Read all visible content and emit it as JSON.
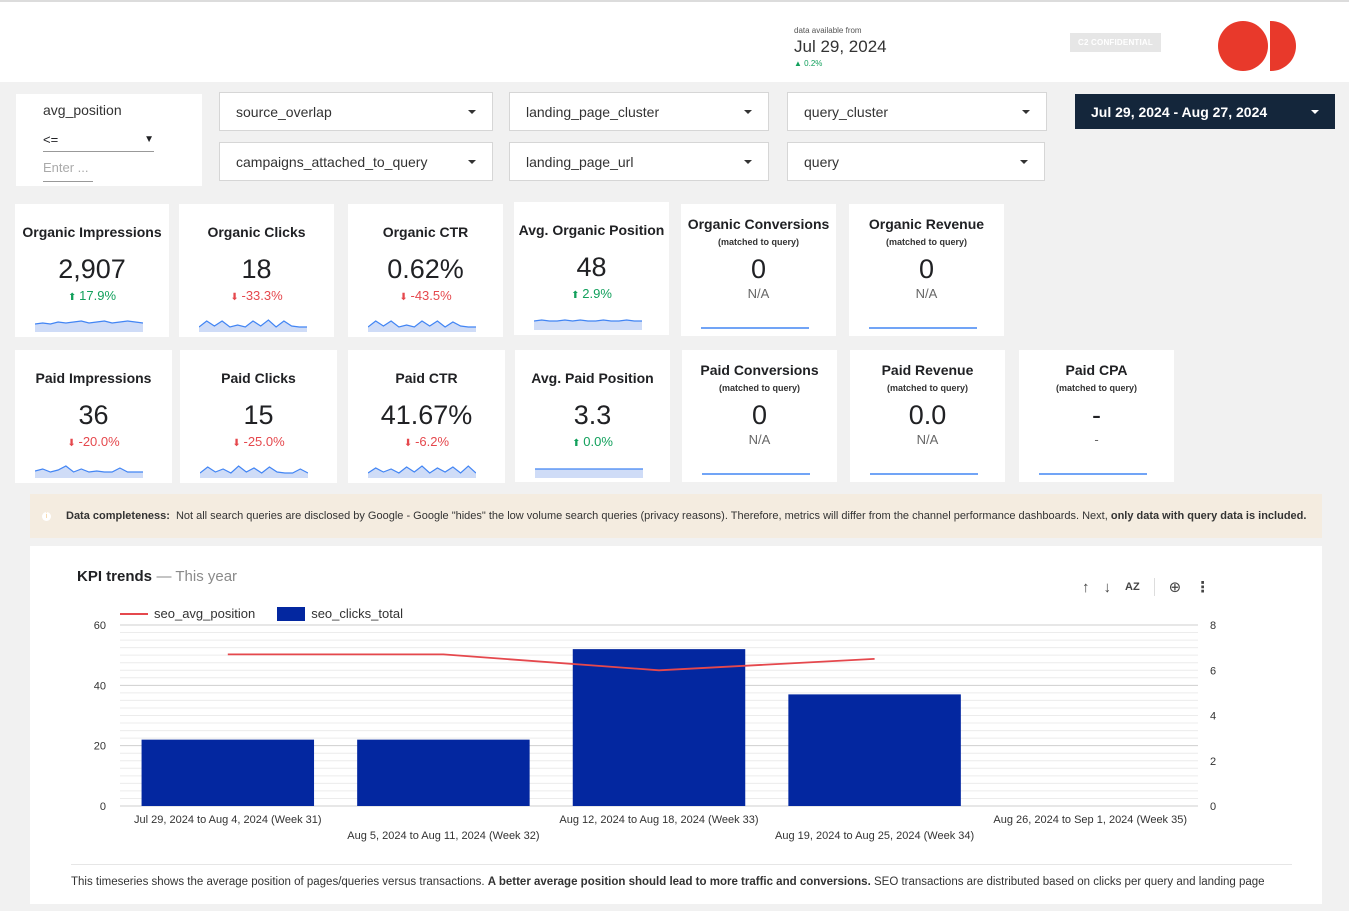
{
  "header": {
    "data_available_label": "data available from",
    "data_available_date": "Jul 29, 2024",
    "data_available_delta": "0.2%",
    "confidential_badge": "C2 CONFIDENTIAL",
    "logo_color": "#e8392b"
  },
  "filters": {
    "avg_position": {
      "label": "avg_position",
      "operator": "<=",
      "placeholder": "Enter ..."
    },
    "dropdowns": [
      "source_overlap",
      "landing_page_cluster",
      "query_cluster",
      "campaigns_attached_to_query",
      "landing_page_url",
      "query"
    ],
    "date_range": "Jul 29, 2024 - Aug 27, 2024"
  },
  "kpis_organic": [
    {
      "title": "Organic Impressions",
      "value": "2,907",
      "delta": "17.9%",
      "dir": "up"
    },
    {
      "title": "Organic Clicks",
      "value": "18",
      "delta": "-33.3%",
      "dir": "down"
    },
    {
      "title": "Organic CTR",
      "value": "0.62%",
      "delta": "-43.5%",
      "dir": "down"
    },
    {
      "title": "Avg. Organic Position",
      "value": "48",
      "delta": "2.9%",
      "dir": "up"
    },
    {
      "title": "Organic Conversions",
      "sub": "(matched to query)",
      "value": "0",
      "delta": "N/A",
      "dir": "na"
    },
    {
      "title": "Organic Revenue",
      "sub": "(matched to query)",
      "value": "0",
      "delta": "N/A",
      "dir": "na"
    }
  ],
  "kpis_paid": [
    {
      "title": "Paid Impressions",
      "value": "36",
      "delta": "-20.0%",
      "dir": "down"
    },
    {
      "title": "Paid Clicks",
      "value": "15",
      "delta": "-25.0%",
      "dir": "down"
    },
    {
      "title": "Paid CTR",
      "value": "41.67%",
      "delta": "-6.2%",
      "dir": "down"
    },
    {
      "title": "Avg. Paid Position",
      "value": "3.3",
      "delta": "0.0%",
      "dir": "up"
    },
    {
      "title": "Paid Conversions",
      "sub": "(matched to query)",
      "value": "0",
      "delta": "N/A",
      "dir": "na"
    },
    {
      "title": "Paid Revenue",
      "sub": "(matched to query)",
      "value": "0.0",
      "delta": "N/A",
      "dir": "na"
    },
    {
      "title": "Paid CPA",
      "sub": "(matched to query)",
      "value": "-",
      "delta": "-",
      "dir": "na"
    }
  ],
  "notice": {
    "label": "Data completeness:",
    "text": "Not all search queries are disclosed by Google - Google \"hides\" the low volume search queries (privacy reasons). Therefore, metrics will differ from the channel performance dashboards. Next,",
    "bold_end": "only data with query data is included."
  },
  "chart": {
    "title": "KPI trends",
    "subtitle": "— This year",
    "toolbar": {
      "sort_asc": "↑",
      "sort_desc": "↓",
      "sort_az": "AZ",
      "zoom": "⊕",
      "more": "⋮"
    },
    "footnote_a": "This timeseries shows the average position of pages/queries versus transactions.",
    "footnote_b": "A better average position should lead to more traffic and conversions.",
    "footnote_c": "SEO transactions are distributed based on clicks per query and landing page"
  },
  "chart_data": {
    "type": "bar",
    "categories": [
      "Jul 29, 2024 to Aug 4, 2024 (Week 31)",
      "Aug 5, 2024 to Aug 11, 2024 (Week 32)",
      "Aug 12, 2024 to Aug 18, 2024 (Week 33)",
      "Aug 19, 2024 to Aug 25, 2024 (Week 34)",
      "Aug 26, 2024 to Sep 1, 2024 (Week 35)"
    ],
    "series": [
      {
        "name": "seo_clicks_total",
        "type": "bar",
        "axis": "left",
        "color": "#0327a0",
        "values": [
          22,
          22,
          52,
          37,
          0
        ]
      },
      {
        "name": "seo_avg_position",
        "type": "line",
        "axis": "right",
        "color": "#e5484d",
        "values": [
          6.7,
          6.7,
          6.0,
          6.5,
          null
        ]
      }
    ],
    "ylim_left": [
      0,
      60
    ],
    "yticks_left": [
      0,
      20,
      40,
      60
    ],
    "ylim_right": [
      0,
      8
    ],
    "yticks_right": [
      0,
      2,
      4,
      6,
      8
    ],
    "grid": true,
    "legend": "top-left"
  }
}
